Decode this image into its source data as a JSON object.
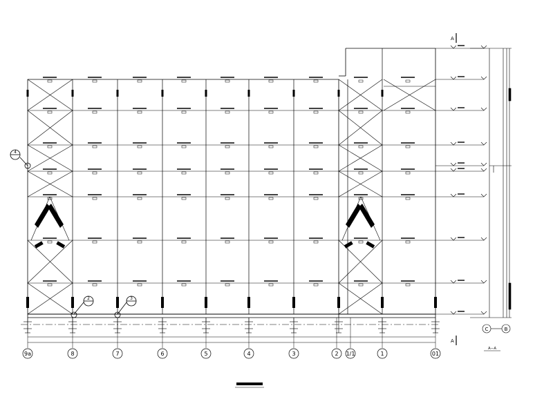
{
  "drawing": {
    "grid_labels": [
      "9a",
      "8",
      "7",
      "6",
      "5",
      "4",
      "3",
      "2",
      "1/1",
      "1",
      "01"
    ],
    "section_mark": "A",
    "section_title": "A—A",
    "section_axis_label": "C",
    "section_axis_label_2": "B",
    "callout_labels": [
      "4",
      "2",
      "3"
    ],
    "stroke_color": "#000000",
    "background_color": "#ffffff"
  }
}
